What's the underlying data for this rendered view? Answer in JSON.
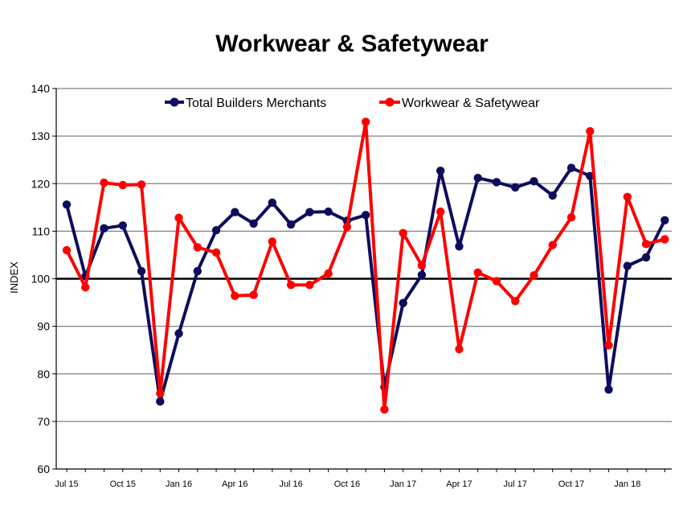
{
  "chart_data": {
    "type": "line",
    "title": "Workwear & Safetywear",
    "xlabel": "",
    "ylabel": "INDEX",
    "ylim": [
      60,
      140
    ],
    "yticks": [
      60,
      70,
      80,
      90,
      100,
      110,
      120,
      130,
      140
    ],
    "xtick_labels": [
      "Jul 15",
      "Oct 15",
      "Jan 16",
      "Apr 16",
      "Jul 16",
      "Oct 16",
      "Jan 17",
      "Apr 17",
      "Jul 17",
      "Oct 17",
      "Jan 18"
    ],
    "grid": "horizontal",
    "legend_position": "top",
    "reference_line": 100,
    "x": [
      "Jul 15",
      "Aug 15",
      "Sep 15",
      "Oct 15",
      "Nov 15",
      "Dec 15",
      "Jan 16",
      "Feb 16",
      "Mar 16",
      "Apr 16",
      "May 16",
      "Jun 16",
      "Jul 16",
      "Aug 16",
      "Sep 16",
      "Oct 16",
      "Nov 16",
      "Dec 16",
      "Jan 17",
      "Feb 17",
      "Mar 17",
      "Apr 17",
      "May 17",
      "Jun 17",
      "Jul 17",
      "Aug 17",
      "Sep 17",
      "Oct 17",
      "Nov 17",
      "Dec 17",
      "Jan 18",
      "Feb 18",
      "Mar 18"
    ],
    "series": [
      {
        "name": "Total Builders Merchants",
        "color": "#0d0d5e",
        "values": [
          115.6,
          100.5,
          110.6,
          111.2,
          101.6,
          74.2,
          88.5,
          101.6,
          110.2,
          114.0,
          111.6,
          116.0,
          111.4,
          114.0,
          114.1,
          112.2,
          113.4,
          77.2,
          94.9,
          100.8,
          122.7,
          106.8,
          121.2,
          120.3,
          119.2,
          120.5,
          117.5,
          123.3,
          121.6,
          76.7,
          102.7,
          104.5,
          112.3
        ]
      },
      {
        "name": "Workwear & Safetywear",
        "color": "#ff0000",
        "values": [
          106.0,
          98.2,
          120.2,
          119.7,
          119.8,
          75.9,
          112.8,
          106.6,
          105.5,
          96.4,
          96.6,
          107.8,
          98.7,
          98.7,
          101.1,
          110.9,
          133.0,
          72.5,
          109.6,
          102.8,
          114.1,
          85.2,
          101.3,
          99.5,
          95.3,
          100.7,
          107.1,
          112.9,
          131.0,
          86.0,
          117.2,
          107.3,
          108.3
        ]
      }
    ],
    "colors": {
      "reference_line": "#000000",
      "grid": "#808080",
      "axis": "#000000"
    }
  }
}
